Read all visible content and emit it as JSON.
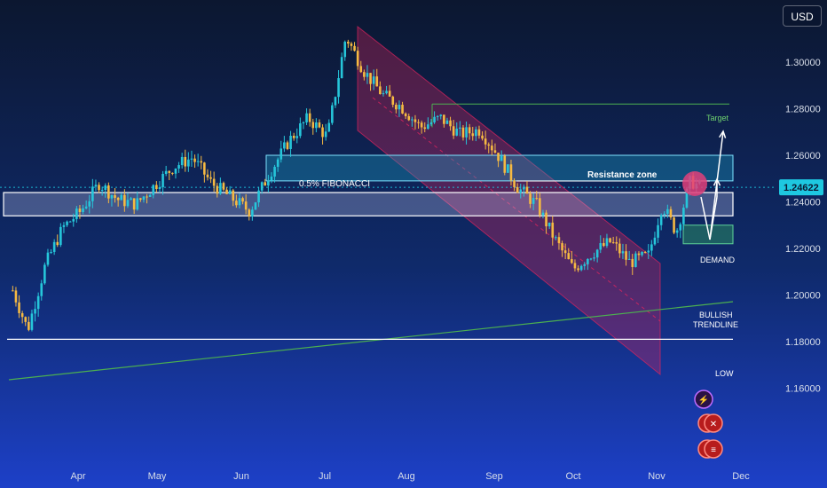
{
  "currency_label": "USD",
  "colors": {
    "candle_up": "#26c6da",
    "candle_down": "#f5b942",
    "channel_fill": "#e0245e",
    "zone_fill": "#cfd8ff",
    "zone_border": "#ffffff",
    "resistance_fill": "#1aa3c7",
    "demand_fill": "#2a8a62",
    "trendline": "#4caf50",
    "target_line": "#4caf50",
    "price_tag": "#1ec8e0",
    "highlight_circle": "#e0407a"
  },
  "chart_data": {
    "type": "candlestick",
    "symbol_currency": "USD",
    "x_ticks": [
      "Apr",
      "May",
      "Jun",
      "Jul",
      "Aug",
      "Sep",
      "Oct",
      "Nov",
      "Dec"
    ],
    "y_ticks": [
      "1.30000",
      "1.28000",
      "1.26000",
      "1.24000",
      "1.22000",
      "1.20000",
      "1.18000",
      "1.16000"
    ],
    "ylim": [
      1.15,
      1.315
    ],
    "current_price": "1.24622",
    "series_close_path": [
      {
        "date": "Mar 05",
        "close": 1.205
      },
      {
        "date": "Mar 12",
        "close": 1.185
      },
      {
        "date": "Mar 19",
        "close": 1.213
      },
      {
        "date": "Mar 26",
        "close": 1.229
      },
      {
        "date": "Apr 02",
        "close": 1.236
      },
      {
        "date": "Apr 09",
        "close": 1.248
      },
      {
        "date": "Apr 16",
        "close": 1.241
      },
      {
        "date": "Apr 23",
        "close": 1.239
      },
      {
        "date": "Apr 30",
        "close": 1.247
      },
      {
        "date": "May 07",
        "close": 1.255
      },
      {
        "date": "May 14",
        "close": 1.259
      },
      {
        "date": "May 21",
        "close": 1.248
      },
      {
        "date": "May 28",
        "close": 1.242
      },
      {
        "date": "Jun 04",
        "close": 1.236
      },
      {
        "date": "Jun 11",
        "close": 1.252
      },
      {
        "date": "Jun 18",
        "close": 1.266
      },
      {
        "date": "Jun 25",
        "close": 1.276
      },
      {
        "date": "Jul 02",
        "close": 1.268
      },
      {
        "date": "Jul 09",
        "close": 1.311
      },
      {
        "date": "Jul 16",
        "close": 1.296
      },
      {
        "date": "Jul 23",
        "close": 1.286
      },
      {
        "date": "Jul 30",
        "close": 1.281
      },
      {
        "date": "Aug 06",
        "close": 1.272
      },
      {
        "date": "Aug 13",
        "close": 1.276
      },
      {
        "date": "Aug 20",
        "close": 1.269
      },
      {
        "date": "Aug 27",
        "close": 1.271
      },
      {
        "date": "Sep 03",
        "close": 1.259
      },
      {
        "date": "Sep 10",
        "close": 1.246
      },
      {
        "date": "Sep 17",
        "close": 1.239
      },
      {
        "date": "Sep 24",
        "close": 1.224
      },
      {
        "date": "Oct 01",
        "close": 1.211
      },
      {
        "date": "Oct 08",
        "close": 1.218
      },
      {
        "date": "Oct 15",
        "close": 1.223
      },
      {
        "date": "Oct 22",
        "close": 1.214
      },
      {
        "date": "Oct 29",
        "close": 1.217
      },
      {
        "date": "Nov 03",
        "close": 1.239
      },
      {
        "date": "Nov 08",
        "close": 1.227
      },
      {
        "date": "Nov 13",
        "close": 1.249
      },
      {
        "date": "Nov 17",
        "close": 1.246
      }
    ],
    "annotations": {
      "fibonacci_label": "0.5% FIBONACCI",
      "resistance_label": "Resistance zone",
      "target_label": "Target",
      "demand_label": "DEMAND",
      "trendline_label_1": "BULLISH",
      "trendline_label_2": "TRENDLINE",
      "low_label": "LOW"
    },
    "levels": {
      "target": 1.282,
      "resistance_zone": [
        1.249,
        1.26
      ],
      "supply_zone": [
        1.234,
        1.244
      ],
      "demand_zone": [
        1.222,
        1.23
      ],
      "low": 1.181
    },
    "grid": false
  }
}
